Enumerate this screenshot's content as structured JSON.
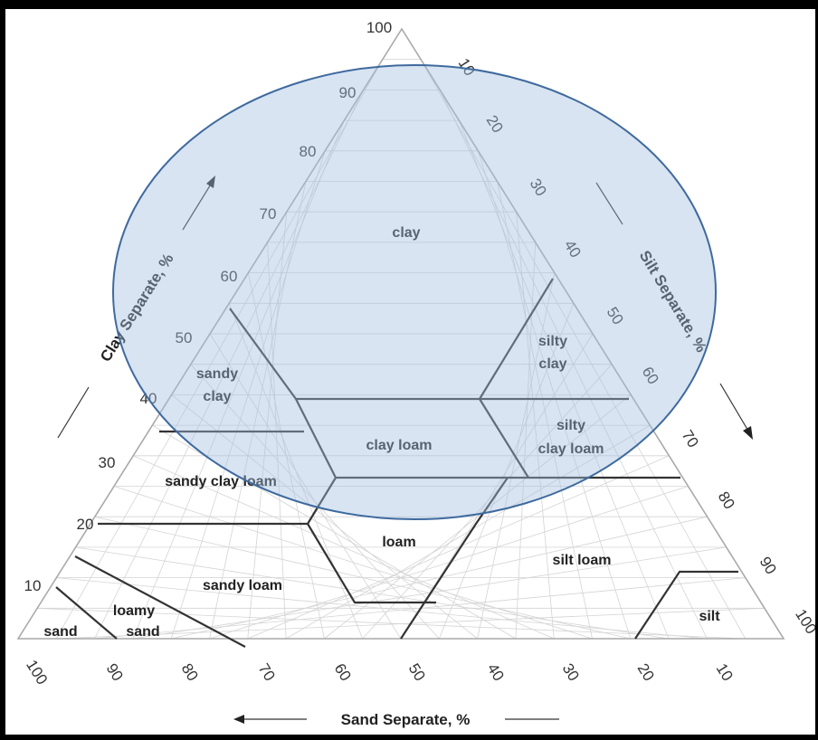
{
  "diagram": {
    "type": "soil-texture-triangle",
    "axes": {
      "clay": {
        "title": "Clay Separate, %",
        "ticks": [
          "10",
          "20",
          "30",
          "40",
          "50",
          "60",
          "70",
          "80",
          "90",
          "100"
        ]
      },
      "silt": {
        "title": "Silt Separate, %",
        "ticks": [
          "10",
          "20",
          "30",
          "40",
          "50",
          "60",
          "70",
          "80",
          "90",
          "100"
        ]
      },
      "sand": {
        "title": "Sand Separate, %",
        "ticks": [
          "100",
          "90",
          "80",
          "70",
          "60",
          "50",
          "40",
          "30",
          "20",
          "10"
        ]
      }
    },
    "regions": [
      {
        "id": "clay",
        "lines": [
          "clay"
        ]
      },
      {
        "id": "silty-clay",
        "lines": [
          "silty",
          "clay"
        ]
      },
      {
        "id": "sandy-clay",
        "lines": [
          "sandy",
          "clay"
        ]
      },
      {
        "id": "silty-clay-loam",
        "lines": [
          "silty",
          "clay loam"
        ]
      },
      {
        "id": "clay-loam",
        "lines": [
          "clay loam"
        ]
      },
      {
        "id": "sandy-clay-loam",
        "lines": [
          "sandy clay loam"
        ]
      },
      {
        "id": "loam",
        "lines": [
          "loam"
        ]
      },
      {
        "id": "silt-loam",
        "lines": [
          "silt loam"
        ]
      },
      {
        "id": "sandy-loam",
        "lines": [
          "sandy loam"
        ]
      },
      {
        "id": "loamy-sand",
        "lines": [
          "loamy",
          "sand"
        ]
      },
      {
        "id": "sand",
        "lines": [
          "sand"
        ]
      },
      {
        "id": "silt",
        "lines": [
          "silt"
        ]
      }
    ],
    "overlay": {
      "shape": "ellipse",
      "fill": "#a3bee1",
      "stroke": "#3f6a9e"
    }
  }
}
